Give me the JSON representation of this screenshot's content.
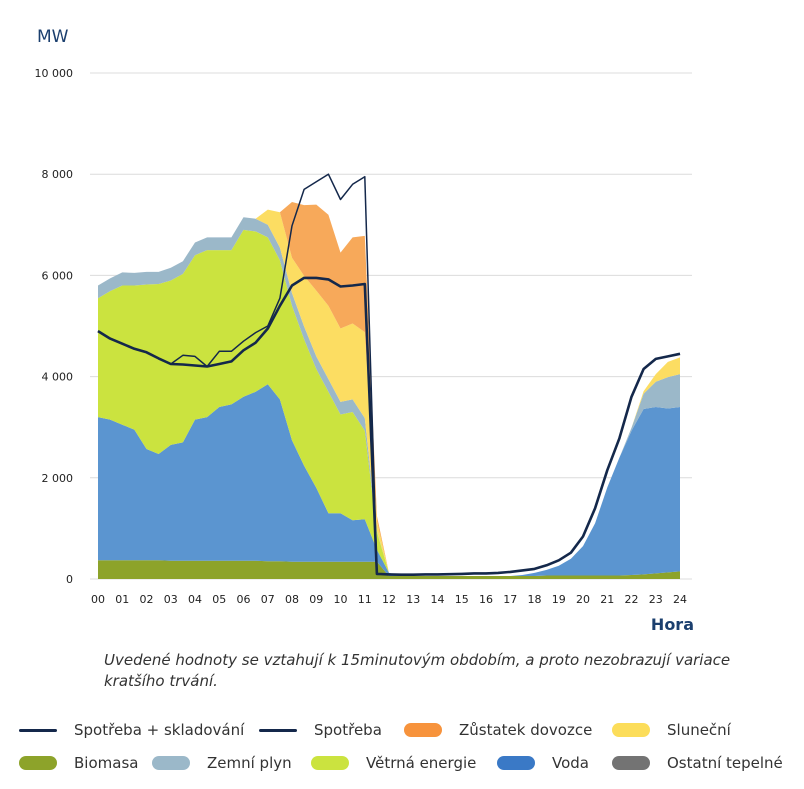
{
  "chart_data": {
    "type": "area",
    "unit_label": "MW",
    "xlabel": "Hora",
    "ylim": [
      0,
      10000
    ],
    "xlim": [
      0,
      24
    ],
    "yticks": [
      0,
      2000,
      4000,
      6000,
      8000,
      10000
    ],
    "ytick_labels": [
      "0",
      "2 000",
      "4 000",
      "6 000",
      "8 000",
      "10 000"
    ],
    "xticks": [
      0,
      1,
      2,
      3,
      4,
      5,
      6,
      7,
      8,
      9,
      10,
      11,
      12,
      13,
      14,
      15,
      16,
      17,
      18,
      19,
      20,
      21,
      22,
      23,
      24
    ],
    "xtick_labels": [
      "00",
      "01",
      "02",
      "03",
      "04",
      "05",
      "06",
      "07",
      "08",
      "09",
      "10",
      "11",
      "12",
      "13",
      "14",
      "15",
      "16",
      "17",
      "18",
      "19",
      "20",
      "21",
      "22",
      "23",
      "24"
    ],
    "grid": "horizontal",
    "legend_position": "bottom",
    "x": [
      0,
      0.5,
      1,
      1.5,
      2,
      2.5,
      3,
      3.5,
      4,
      4.5,
      5,
      5.5,
      6,
      6.5,
      7,
      7.5,
      8,
      8.5,
      9,
      9.5,
      10,
      10.5,
      11,
      11.5,
      12,
      12.5,
      13,
      13.5,
      14,
      14.5,
      15,
      15.5,
      16,
      16.5,
      17,
      17.5,
      18,
      18.5,
      19,
      19.5,
      20,
      20.5,
      21,
      21.5,
      22,
      22.5,
      23,
      23.5,
      24
    ],
    "stacked_series": [
      {
        "name": "Biomasa",
        "color": "#8da32a",
        "values": [
          370,
          370,
          370,
          370,
          370,
          370,
          360,
          360,
          360,
          360,
          360,
          360,
          360,
          360,
          350,
          350,
          340,
          340,
          340,
          340,
          340,
          340,
          340,
          340,
          60,
          60,
          60,
          60,
          60,
          60,
          60,
          60,
          60,
          60,
          60,
          60,
          60,
          70,
          70,
          70,
          70,
          70,
          70,
          70,
          80,
          90,
          110,
          130,
          150
        ]
      },
      {
        "name": "Voda",
        "color": "#5b95d0",
        "values": [
          2830,
          2780,
          2680,
          2580,
          2200,
          2100,
          2290,
          2340,
          2790,
          2840,
          3040,
          3090,
          3240,
          3340,
          3500,
          3200,
          2400,
          1900,
          1460,
          960,
          960,
          820,
          840,
          240,
          60,
          0,
          0,
          0,
          0,
          0,
          0,
          0,
          0,
          0,
          0,
          20,
          60,
          110,
          190,
          330,
          580,
          1030,
          1740,
          2330,
          2850,
          3270,
          3290,
          3240,
          3250
        ]
      },
      {
        "name": "Větrná energie",
        "color": "#cbe33f",
        "values": [
          2350,
          2540,
          2750,
          2850,
          3250,
          3360,
          3250,
          3330,
          3250,
          3300,
          3100,
          3050,
          3300,
          3170,
          2900,
          2750,
          2660,
          2500,
          2350,
          2400,
          1950,
          2140,
          1750,
          350,
          0,
          0,
          0,
          0,
          0,
          0,
          0,
          0,
          0,
          0,
          0,
          0,
          0,
          0,
          0,
          0,
          0,
          0,
          0,
          0,
          0,
          0,
          0,
          0,
          0
        ]
      },
      {
        "name": "Zemní plyn",
        "color": "#9bb8c9",
        "values": [
          250,
          250,
          260,
          250,
          250,
          240,
          250,
          250,
          250,
          250,
          250,
          250,
          250,
          250,
          250,
          250,
          250,
          250,
          250,
          250,
          250,
          250,
          250,
          20,
          0,
          0,
          0,
          0,
          0,
          0,
          0,
          0,
          0,
          0,
          0,
          0,
          0,
          0,
          0,
          0,
          0,
          0,
          0,
          0,
          60,
          300,
          500,
          620,
          650
        ]
      },
      {
        "name": "Sluneční",
        "color": "#fcdd62",
        "values": [
          0,
          0,
          0,
          0,
          0,
          0,
          0,
          0,
          0,
          0,
          0,
          0,
          0,
          0,
          300,
          700,
          700,
          1000,
          1300,
          1450,
          1450,
          1500,
          1700,
          200,
          0,
          0,
          0,
          0,
          0,
          0,
          0,
          0,
          0,
          0,
          0,
          0,
          0,
          0,
          0,
          0,
          0,
          0,
          0,
          0,
          0,
          50,
          150,
          300,
          330
        ]
      },
      {
        "name": "Zůstatek dovozce",
        "color": "#f7a95a",
        "values": [
          0,
          0,
          0,
          0,
          0,
          0,
          0,
          0,
          0,
          0,
          0,
          0,
          0,
          0,
          0,
          0,
          1100,
          1400,
          1700,
          1800,
          1500,
          1700,
          1900,
          100,
          0,
          0,
          0,
          0,
          0,
          0,
          0,
          0,
          0,
          0,
          0,
          0,
          0,
          0,
          0,
          0,
          0,
          0,
          0,
          0,
          0,
          0,
          0,
          0,
          0
        ]
      }
    ],
    "line_series": [
      {
        "name": "Spotřeba",
        "color": "#14284b",
        "values": [
          4900,
          4750,
          4650,
          4550,
          4480,
          4360,
          4250,
          4240,
          4220,
          4200,
          4250,
          4300,
          4520,
          4670,
          4950,
          5400,
          5800,
          5950,
          5950,
          5920,
          5780,
          5800,
          5830,
          100,
          90,
          85,
          85,
          90,
          90,
          95,
          100,
          110,
          110,
          120,
          140,
          170,
          200,
          270,
          370,
          520,
          840,
          1400,
          2150,
          2780,
          3600,
          4150,
          4350,
          4400,
          4450
        ]
      },
      {
        "name": "Spotřeba + skladování",
        "color": "#14284b",
        "values": [
          4900,
          4750,
          4650,
          4550,
          4480,
          4360,
          4250,
          4420,
          4400,
          4200,
          4500,
          4500,
          4700,
          4870,
          5000,
          5550,
          6980,
          7700,
          7850,
          8000,
          7500,
          7800,
          7950,
          100,
          90,
          85,
          85,
          90,
          90,
          95,
          100,
          110,
          110,
          120,
          140,
          170,
          200,
          270,
          370,
          520,
          840,
          1400,
          2150,
          2780,
          3600,
          4150,
          4350,
          4400,
          4450
        ]
      }
    ]
  },
  "note": "Uvedené hodnoty se vztahují k 15minutovým obdobím, a proto nezobrazují variace kratšího trvání.",
  "legend": [
    {
      "label": "Spotřeba + skladování",
      "kind": "line",
      "color": "#14284b"
    },
    {
      "label": "Spotřeba",
      "kind": "line",
      "color": "#14284b"
    },
    {
      "label": "Zůstatek dovozce",
      "kind": "swatch",
      "color": "#f7933c"
    },
    {
      "label": "Sluneční",
      "kind": "swatch",
      "color": "#fcdd5a"
    },
    {
      "label": "Biomasa",
      "kind": "swatch",
      "color": "#8da32a"
    },
    {
      "label": "Zemní plyn",
      "kind": "swatch",
      "color": "#9bb8c9"
    },
    {
      "label": "Větrná energie",
      "kind": "swatch",
      "color": "#cbe33f"
    },
    {
      "label": "Voda",
      "kind": "swatch",
      "color": "#3a79c6"
    },
    {
      "label": "Ostatní tepelné",
      "kind": "swatch",
      "color": "#737373"
    }
  ]
}
